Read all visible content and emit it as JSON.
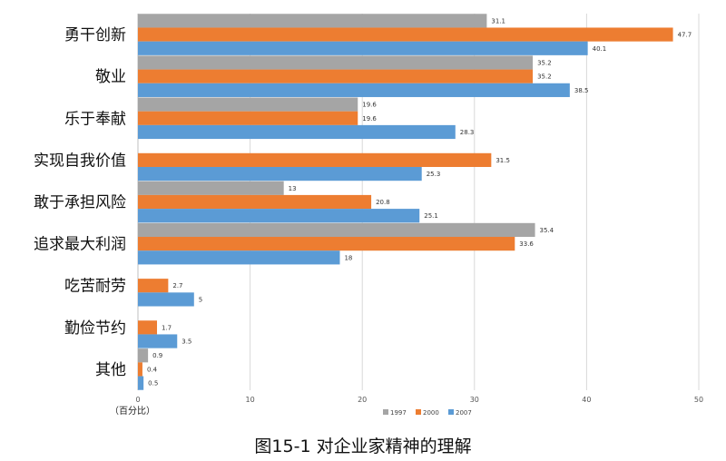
{
  "caption": "图15-1  对企业家精神的理解",
  "chart_data": {
    "type": "bar",
    "orientation": "horizontal",
    "categories": [
      "勇干创新",
      "敬业",
      "乐于奉献",
      "实现自我价值",
      "敢于承担风险",
      "追求最大利润",
      "吃苦耐劳",
      "勤俭节约",
      "其他"
    ],
    "series": [
      {
        "name": "1997",
        "color": "#a5a5a5",
        "values": [
          31.1,
          35.2,
          19.6,
          null,
          13,
          35.4,
          null,
          null,
          0.9
        ]
      },
      {
        "name": "2000",
        "color": "#ed7d31",
        "values": [
          47.7,
          35.2,
          19.6,
          31.5,
          20.8,
          33.6,
          2.7,
          1.7,
          0.4
        ]
      },
      {
        "name": "2007",
        "color": "#5b9bd5",
        "values": [
          40.1,
          38.5,
          28.3,
          25.3,
          25.1,
          18,
          5,
          3.5,
          0.5
        ]
      }
    ],
    "xlim": [
      0,
      50
    ],
    "xticks": [
      0,
      10,
      20,
      30,
      40,
      50
    ],
    "xlabel": "（百分比）",
    "legend_position": "bottom-right",
    "grid": true
  }
}
